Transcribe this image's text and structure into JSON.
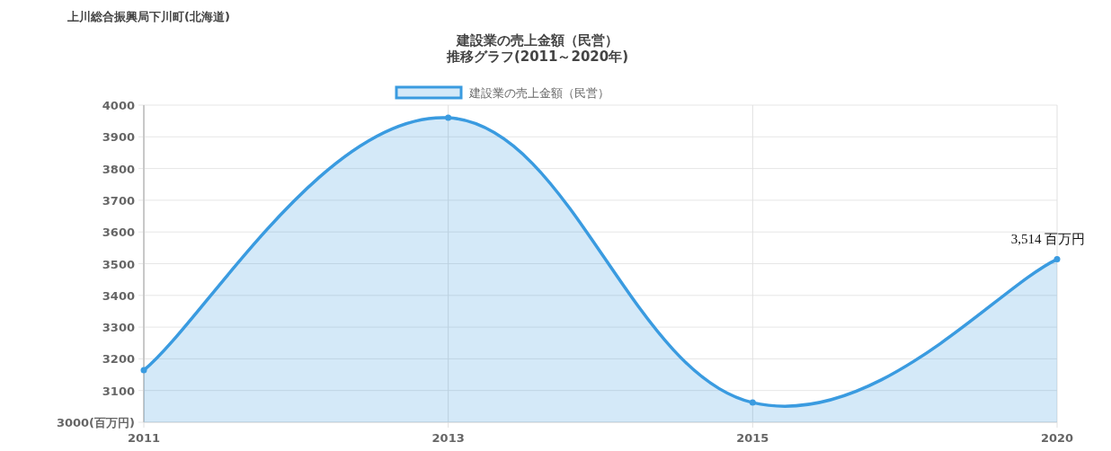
{
  "chart_data": {
    "type": "area",
    "title": "建設業の売上金額（民営）",
    "subtitle": "推移グラフ(2011～2020年)",
    "categories": [
      "2011",
      "2013",
      "2015",
      "2020"
    ],
    "series": [
      {
        "name": "建設業の売上金額（民営）",
        "color": "#3a9be0",
        "values": [
          3164,
          3960,
          3062,
          3514
        ]
      }
    ],
    "ylim": [
      3000,
      4000
    ],
    "yticks": [
      {
        "value": 3000,
        "label": "3000(百万円)"
      },
      3100,
      3200,
      3300,
      3400,
      3500,
      3600,
      3700,
      3800,
      3900,
      4000
    ],
    "grid": true,
    "legend": "top",
    "marker": "circle",
    "annotations": [
      "上川総合振興局下川町(北海道)",
      {
        "text": "3,514 百万円",
        "x": "2020",
        "y": 3514
      }
    ]
  }
}
